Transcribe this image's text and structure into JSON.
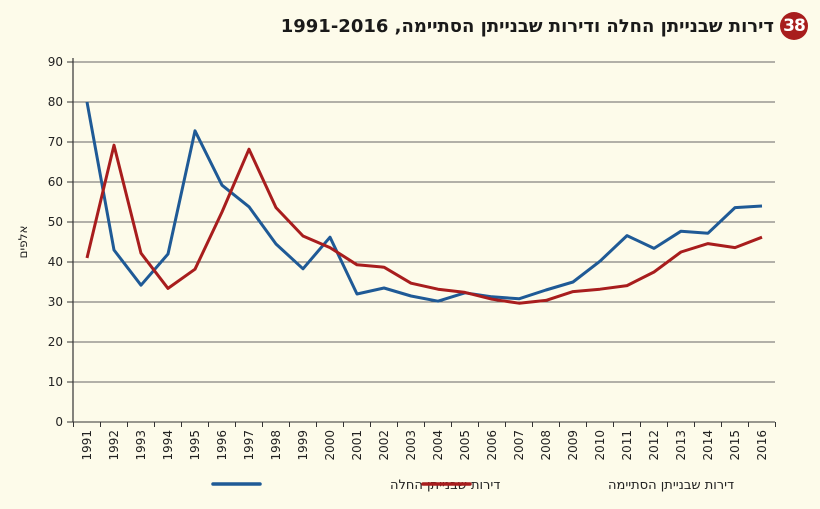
{
  "badge": "38",
  "title": "דירות שבנייתן החלה ודירות שבנייתן הסתיימה, 1991-2016",
  "chart_data": {
    "type": "line",
    "title": "דירות שבנייתן החלה ודירות שבנייתן הסתיימה, 1991-2016",
    "ylabel": "אלפים",
    "xlabel": "",
    "ylim": [
      0,
      90
    ],
    "yticks": [
      0,
      10,
      20,
      30,
      40,
      50,
      60,
      70,
      80,
      90
    ],
    "grid": true,
    "legend": "bottom",
    "categories": [
      "1991",
      "1992",
      "1993",
      "1994",
      "1995",
      "1996",
      "1997",
      "1998",
      "1999",
      "2000",
      "2001",
      "2002",
      "2003",
      "2004",
      "2005",
      "2006",
      "2007",
      "2008",
      "2009",
      "2010",
      "2011",
      "2012",
      "2013",
      "2014",
      "2015",
      "2016"
    ],
    "series": [
      {
        "name": "דירות שבנייתן החלה",
        "color": "#1f5a96",
        "values": [
          80,
          43,
          34.2,
          42,
          72.8,
          59.2,
          53.8,
          44.5,
          38.3,
          46.2,
          32,
          33.5,
          31.5,
          30.2,
          32.3,
          31.3,
          30.8,
          33,
          35,
          40.2,
          46.6,
          43.4,
          47.7,
          47.2,
          53.6,
          54
        ]
      },
      {
        "name": "דירות שבנייתן הסתיימה",
        "color": "#a81d1d",
        "values": [
          41,
          69.2,
          42.2,
          33.4,
          38.2,
          52.5,
          68.2,
          53.6,
          46.5,
          43.6,
          39.3,
          38.7,
          34.7,
          33.2,
          32.4,
          30.7,
          29.7,
          30.4,
          32.6,
          33.2,
          34.1,
          37.5,
          42.5,
          44.6,
          43.6,
          46.2
        ]
      }
    ]
  }
}
